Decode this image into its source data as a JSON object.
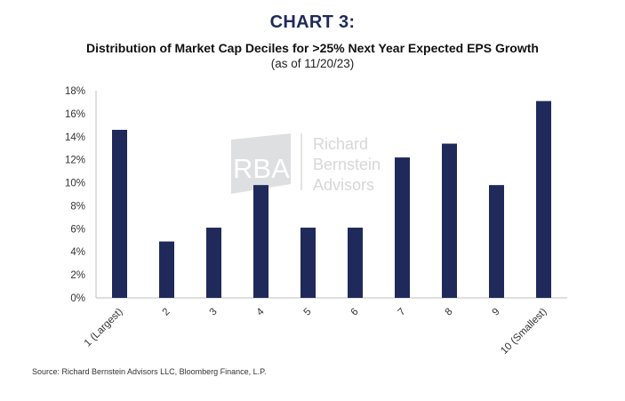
{
  "header": {
    "chart_label": "CHART 3:",
    "title": "Distribution of Market Cap Deciles for >25% Next Year Expected EPS Growth",
    "subtitle": "(as of 11/20/23)"
  },
  "watermark": {
    "mark": "RBA",
    "line1": "Richard",
    "line2": "Bernstein",
    "line3": "Advisors"
  },
  "source": "Source: Richard Bernstein Advisors LLC, Bloomberg Finance, L.P.",
  "colors": {
    "bar": "#1f2a5a",
    "title": "#1f2a5a",
    "axis": "#bfbfbf"
  },
  "chart_data": {
    "type": "bar",
    "categories": [
      "1 (Largest)",
      "2",
      "3",
      "4",
      "5",
      "6",
      "7",
      "8",
      "9",
      "10 (Smallest)"
    ],
    "values": [
      14.6,
      4.9,
      6.1,
      9.8,
      6.1,
      6.1,
      12.2,
      13.4,
      9.8,
      17.1
    ],
    "yticks": [
      "0%",
      "2%",
      "4%",
      "6%",
      "8%",
      "10%",
      "12%",
      "14%",
      "16%",
      "18%"
    ],
    "ylim": [
      0,
      18
    ],
    "grid": false,
    "legend": "none"
  }
}
